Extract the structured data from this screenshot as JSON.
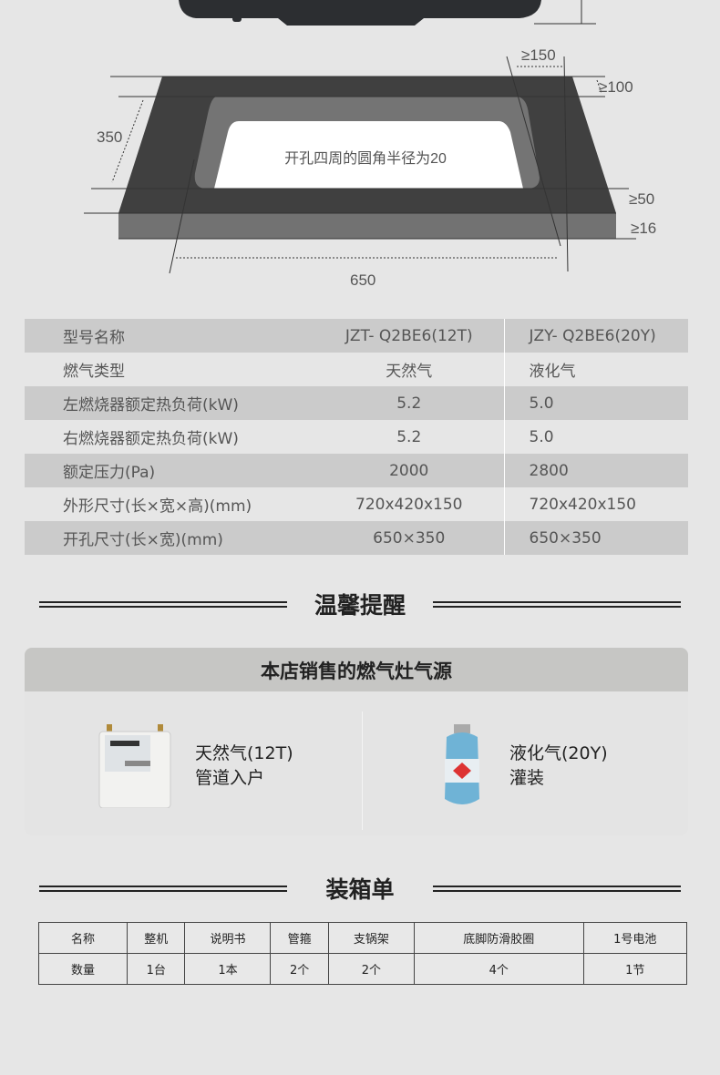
{
  "diagram": {
    "cutout_note": "开孔四周的圆角半径为20",
    "dim_width": "650",
    "dim_depth": "350",
    "clear_back": "≥150",
    "clear_side": "≥100",
    "clear_front": "≥50",
    "thickness": "≥16"
  },
  "spec_table": {
    "rows": [
      [
        "型号名称",
        "JZT- Q2BE6(12T)",
        "JZY- Q2BE6(20Y)"
      ],
      [
        "燃气类型",
        "天然气",
        "液化气"
      ],
      [
        "左燃烧器额定热负荷(kW)",
        "5.2",
        "5.0"
      ],
      [
        "右燃烧器额定热负荷(kW)",
        "5.2",
        "5.0"
      ],
      [
        "额定压力(Pa)",
        "2000",
        "2800"
      ],
      [
        "外形尺寸(长×宽×高)(mm)",
        "720x420x150",
        "720x420x150"
      ],
      [
        "开孔尺寸(长×宽)(mm)",
        "650×350",
        "650×350"
      ]
    ]
  },
  "reminder": {
    "title": "温馨提醒"
  },
  "gas_source": {
    "title": "本店销售的燃气灶气源",
    "items": [
      {
        "line1": "天然气(12T)",
        "line2": "管道入户",
        "icon": "gas-meter-icon"
      },
      {
        "line1": "液化气(20Y)",
        "line2": "灌装",
        "icon": "gas-cylinder-icon"
      }
    ]
  },
  "packing": {
    "title": "装箱单",
    "header": [
      "名称",
      "整机",
      "说明书",
      "管箍",
      "支锅架",
      "底脚防滑胶圈",
      "1号电池"
    ],
    "qty": [
      "数量",
      "1台",
      "1本",
      "2个",
      "2个",
      "4个",
      "1节"
    ]
  }
}
